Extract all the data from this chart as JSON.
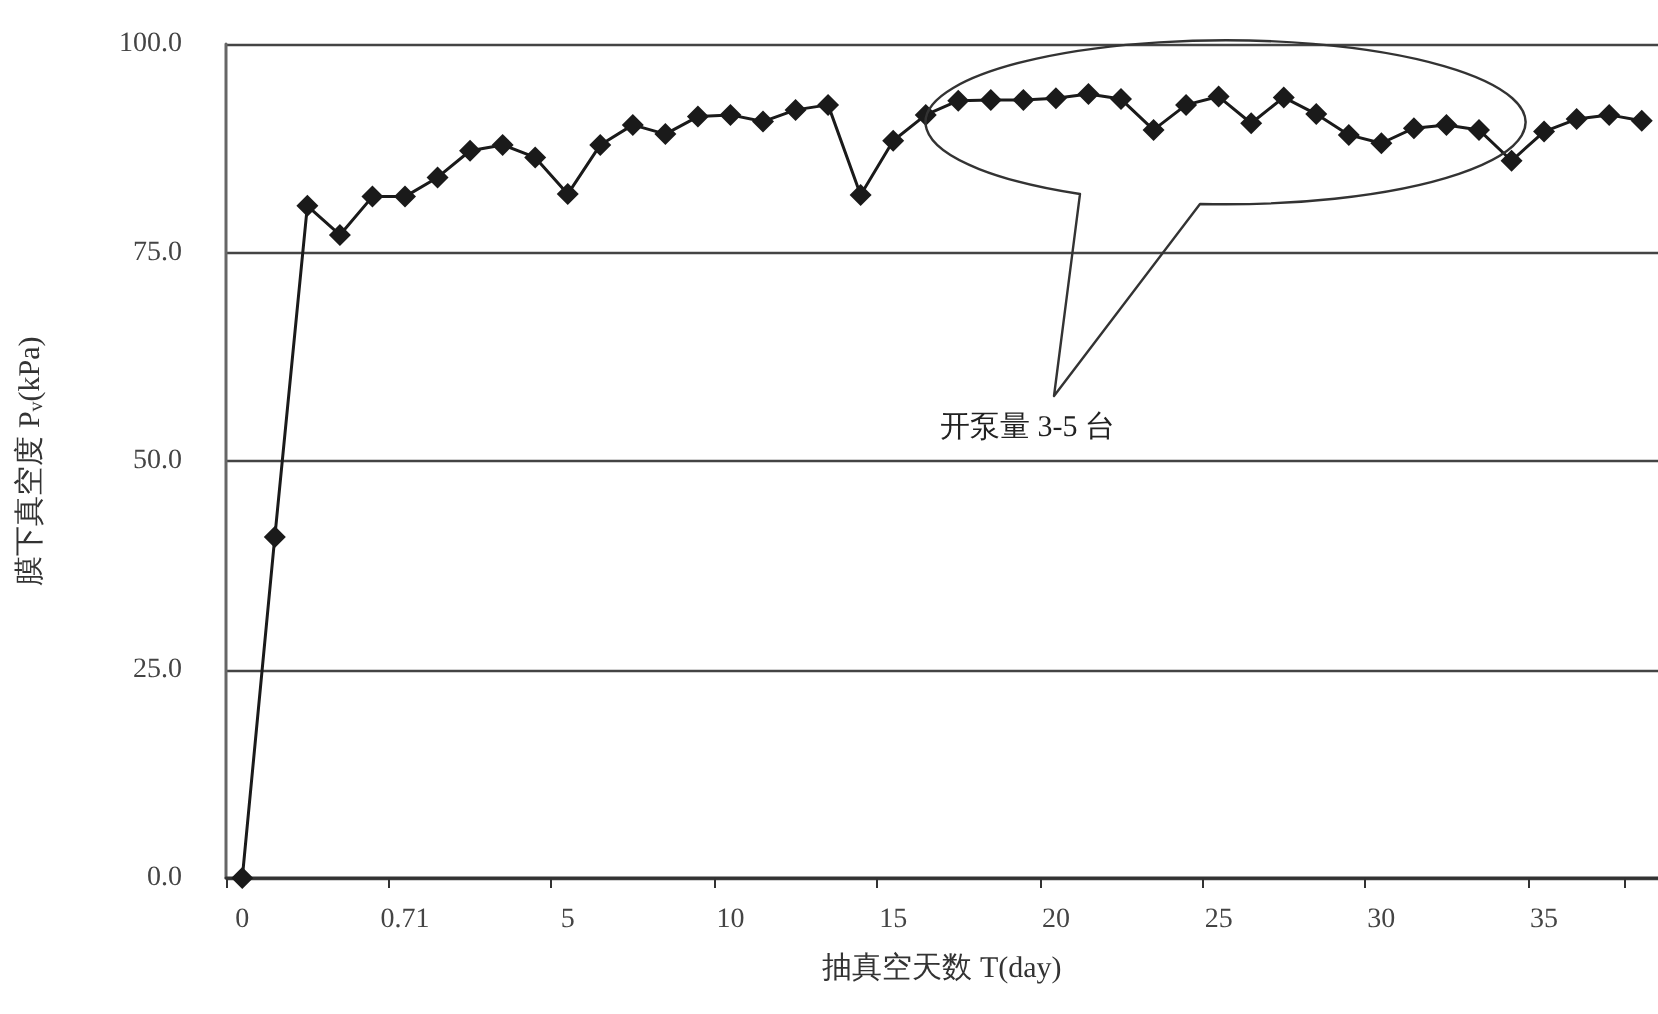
{
  "chart_data": {
    "type": "line",
    "xlabel": "抽真空天数 T(day)",
    "ylabel": "膜下真空度 P$_{v}$(kPa)",
    "categories": [
      "0",
      null,
      null,
      null,
      null,
      "0.71",
      null,
      null,
      null,
      null,
      "5",
      null,
      null,
      null,
      null,
      "10",
      null,
      null,
      null,
      null,
      "15",
      null,
      null,
      null,
      null,
      "20",
      null,
      null,
      null,
      null,
      "25",
      null,
      null,
      null,
      null,
      "30",
      null,
      null,
      null,
      null,
      "35",
      null,
      null,
      null
    ],
    "series": [
      {
        "color": "#1a1a1a",
        "values": [
          0,
          40.9,
          80.6,
          77.1,
          81.7,
          81.7,
          84.0,
          87.2,
          87.9,
          86.4,
          82.0,
          87.9,
          90.3,
          89.2,
          91.3,
          91.5,
          90.7,
          92.1,
          92.7,
          81.9,
          88.4,
          91.5,
          93.2,
          93.3,
          93.3,
          93.5,
          94.0,
          93.4,
          89.7,
          92.7,
          93.7,
          90.5,
          93.6,
          91.6,
          89.1,
          88.1,
          89.9,
          90.3,
          89.7,
          86.0,
          89.5,
          91.0,
          91.5,
          90.8
        ]
      }
    ],
    "ylim": [
      0,
      100
    ],
    "yticks": [
      {
        "value": 0,
        "label": "0.0"
      },
      {
        "value": 25,
        "label": "25.0"
      },
      {
        "value": 50,
        "label": "50.0"
      },
      {
        "value": 75,
        "label": "75.0"
      },
      {
        "value": 100,
        "label": "100.0"
      }
    ],
    "grid": "y",
    "marker": "diamond",
    "line_style": "solid",
    "annotations": [
      "开泵量 3-5 台"
    ]
  }
}
